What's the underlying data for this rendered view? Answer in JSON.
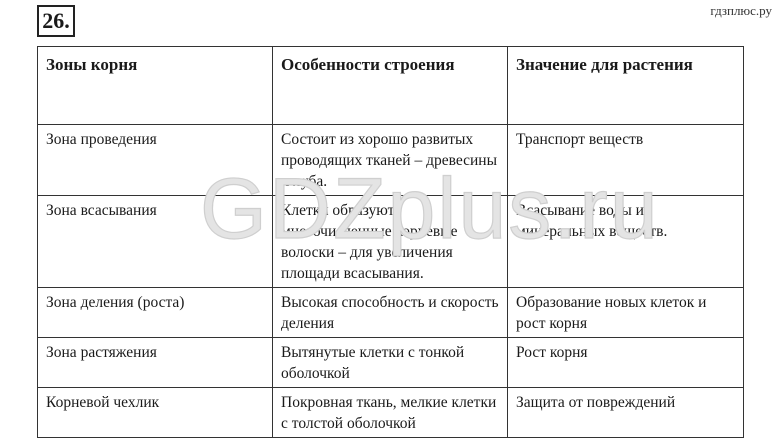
{
  "task_number": "26.",
  "site_label": "гдзплюс.ру",
  "watermark": "GDZplus.ru",
  "table": {
    "headers": [
      "Зоны корня",
      "Особенности строения",
      "Значение для растения"
    ],
    "rows": [
      [
        "Зона проведения",
        "Состоит из хорошо развитых проводящих тканей – древесины и луба.",
        "Транспорт веществ"
      ],
      [
        "Зона всасывания",
        "Клетки образуют многочисленные корневые волоски – для увеличения площади всасывания.",
        "Всасывание воды и минеральных веществ."
      ],
      [
        "Зона деления (роста)",
        "Высокая способность и скорость деления",
        "Образование новых клеток и рост корня"
      ],
      [
        "Зона растяжения",
        "Вытянутые клетки с тонкой оболочкой",
        "Рост корня"
      ],
      [
        "Корневой чехлик",
        "Покровная ткань, мелкие клетки с толстой оболочкой",
        "Защита от повреждений"
      ]
    ]
  }
}
